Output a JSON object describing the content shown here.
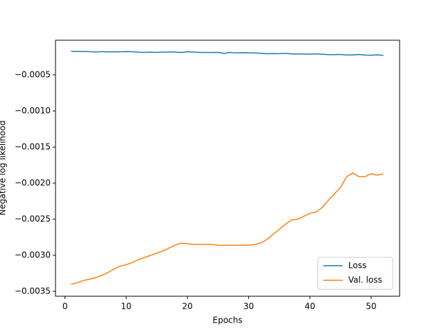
{
  "chart_data": {
    "type": "line",
    "x_label": "Epochs",
    "y_label": "Negative log likelihood",
    "x": [
      1,
      2,
      3,
      4,
      5,
      6,
      7,
      8,
      9,
      10,
      11,
      12,
      13,
      14,
      15,
      16,
      17,
      18,
      19,
      20,
      21,
      22,
      23,
      24,
      25,
      26,
      27,
      28,
      29,
      30,
      31,
      32,
      33,
      34,
      35,
      36,
      37,
      38,
      39,
      40,
      41,
      42,
      43,
      44,
      45,
      46,
      47,
      48,
      49,
      50,
      51,
      52
    ],
    "series": [
      {
        "name": "Loss",
        "color": "#1f77b4",
        "values": [
          -0.000175,
          -0.000176,
          -0.000176,
          -0.000178,
          -0.000183,
          -0.000178,
          -0.000181,
          -0.000181,
          -0.00018,
          -0.000178,
          -0.000179,
          -0.000186,
          -0.000188,
          -0.000185,
          -0.000188,
          -0.000185,
          -0.000184,
          -0.000184,
          -0.00019,
          -0.00018,
          -0.000185,
          -0.000188,
          -0.00019,
          -0.00019,
          -0.000188,
          -0.000202,
          -0.000188,
          -0.000196,
          -0.000193,
          -0.000194,
          -0.000197,
          -0.0002,
          -0.000207,
          -0.000205,
          -0.000206,
          -0.000202,
          -0.00021,
          -0.00021,
          -0.000211,
          -0.000212,
          -0.000209,
          -0.000213,
          -0.000219,
          -0.00022,
          -0.000217,
          -0.000224,
          -0.000224,
          -0.000217,
          -0.000226,
          -0.000228,
          -0.000222,
          -0.00023
        ]
      },
      {
        "name": "Val. loss",
        "color": "#ff7f0e",
        "values": [
          -0.0034,
          -0.00338,
          -0.00335,
          -0.00333,
          -0.00331,
          -0.00328,
          -0.00324,
          -0.00319,
          -0.00315,
          -0.00313,
          -0.0031,
          -0.00306,
          -0.00303,
          -0.003,
          -0.00297,
          -0.00294,
          -0.0029,
          -0.00286,
          -0.00283,
          -0.00284,
          -0.00285,
          -0.00285,
          -0.00285,
          -0.00285,
          -0.00286,
          -0.00286,
          -0.00286,
          -0.00286,
          -0.00286,
          -0.00286,
          -0.00285,
          -0.00283,
          -0.00278,
          -0.00271,
          -0.00264,
          -0.00257,
          -0.00251,
          -0.0025,
          -0.00246,
          -0.00242,
          -0.0024,
          -0.00234,
          -0.00224,
          -0.00215,
          -0.00206,
          -0.00191,
          -0.00186,
          -0.00191,
          -0.00191,
          -0.00187,
          -0.00189,
          -0.00187
        ]
      }
    ],
    "xlim": [
      -1.55,
      54.65
    ],
    "ylim": [
      -0.003567,
      -2e-05
    ],
    "xticks": [
      0,
      10,
      20,
      30,
      40,
      50
    ],
    "yticks": [
      {
        "value": -0.0005,
        "label": "−0.0005"
      },
      {
        "value": -0.001,
        "label": "−0.0010"
      },
      {
        "value": -0.0015,
        "label": "−0.0015"
      },
      {
        "value": -0.002,
        "label": "−0.0020"
      },
      {
        "value": -0.0025,
        "label": "−0.0025"
      },
      {
        "value": -0.003,
        "label": "−0.0030"
      },
      {
        "value": -0.0035,
        "label": "−0.0035"
      }
    ],
    "grid": false,
    "legend": "lower right"
  }
}
